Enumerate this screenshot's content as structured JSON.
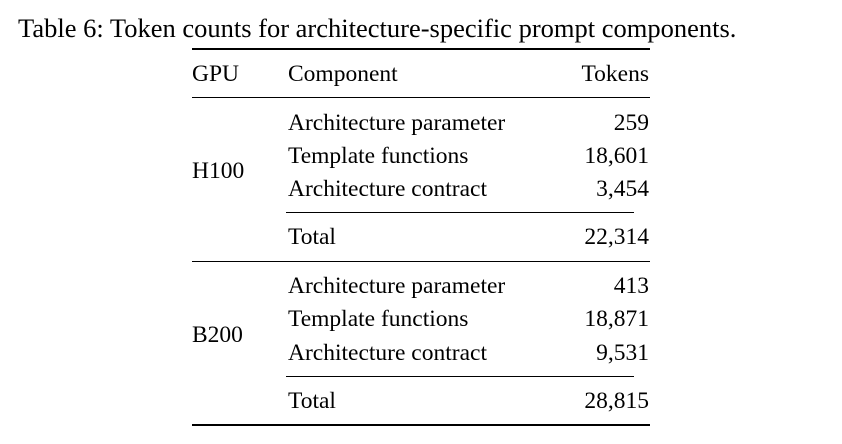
{
  "caption": "Table 6: Token counts for architecture-specific prompt components.",
  "headers": {
    "gpu": "GPU",
    "component": "Component",
    "tokens": "Tokens"
  },
  "groups": [
    {
      "gpu": "H100",
      "rows": [
        {
          "component": "Architecture parameter",
          "tokens": "259"
        },
        {
          "component": "Template functions",
          "tokens": "18,601"
        },
        {
          "component": "Architecture contract",
          "tokens": "3,454"
        }
      ],
      "total": {
        "label": "Total",
        "tokens": "22,314"
      }
    },
    {
      "gpu": "B200",
      "rows": [
        {
          "component": "Architecture parameter",
          "tokens": "413"
        },
        {
          "component": "Template functions",
          "tokens": "18,871"
        },
        {
          "component": "Architecture contract",
          "tokens": "9,531"
        }
      ],
      "total": {
        "label": "Total",
        "tokens": "28,815"
      }
    }
  ]
}
